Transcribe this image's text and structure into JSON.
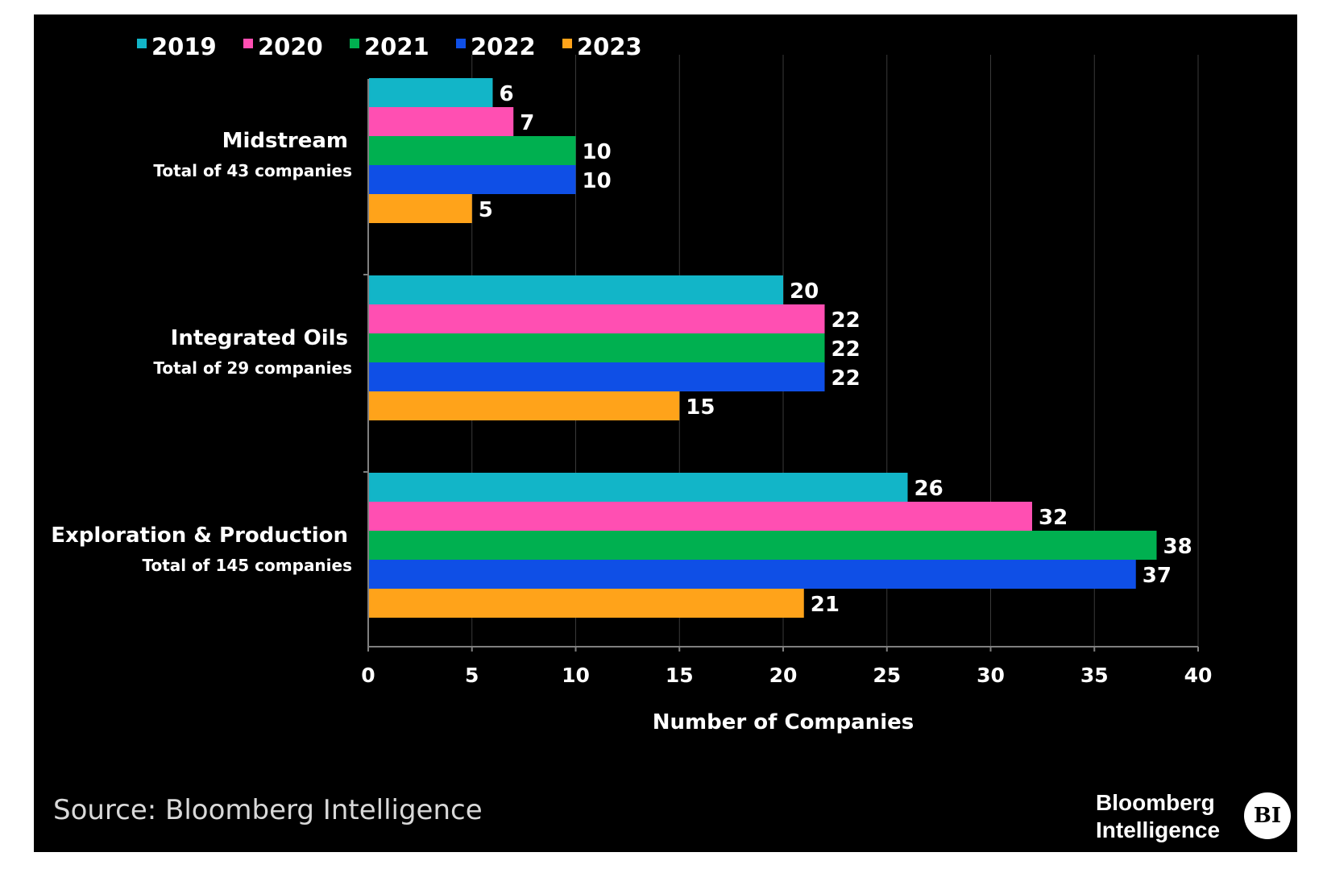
{
  "chart_data": {
    "type": "bar",
    "orientation": "horizontal",
    "categories": [
      {
        "name": "Midstream",
        "subtitle": "Total of 43 companies"
      },
      {
        "name": "Integrated Oils",
        "subtitle": "Total of 29 companies"
      },
      {
        "name": "Exploration & Production",
        "subtitle": "Total of 145 companies"
      }
    ],
    "series": [
      {
        "name": "2019",
        "color": "#12b5c8",
        "values": [
          6,
          20,
          26
        ]
      },
      {
        "name": "2020",
        "color": "#ff4fb2",
        "values": [
          7,
          22,
          32
        ]
      },
      {
        "name": "2021",
        "color": "#00b050",
        "values": [
          10,
          22,
          38
        ]
      },
      {
        "name": "2022",
        "color": "#0f4fe6",
        "values": [
          10,
          22,
          37
        ]
      },
      {
        "name": "2023",
        "color": "#ffa31a",
        "values": [
          5,
          15,
          21
        ]
      }
    ],
    "xlabel": "Number of Companies",
    "xlim": [
      0,
      40
    ],
    "xticks": [
      0,
      5,
      10,
      15,
      20,
      25,
      30,
      35,
      40
    ],
    "legend_position": "top-left",
    "grid": true,
    "background": "#000000"
  },
  "footer": {
    "source": "Source: Bloomberg Intelligence",
    "brand_name": "Bloomberg Intelligence",
    "brand_logo": "BI"
  }
}
